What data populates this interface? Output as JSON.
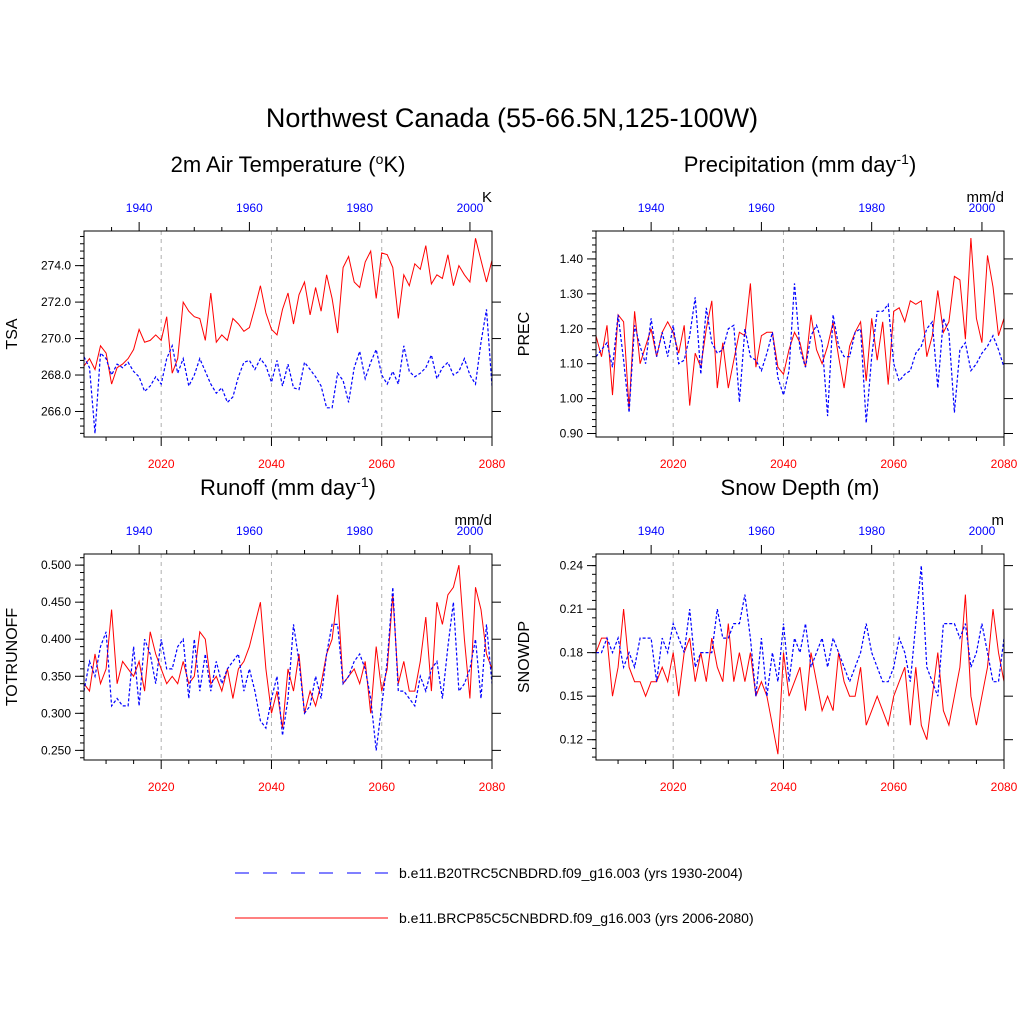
{
  "title": "Northwest Canada (55-66.5N,125-100W)",
  "legend": {
    "historical": "b.e11.B20TRC5CNBDRD.f09_g16.003 (yrs 1930-2004)",
    "future": "b.e11.BRCP85C5CNBDRD.f09_g16.003 (yrs 2006-2080)"
  },
  "colors": {
    "historical": "#0000ff",
    "future": "#ff0000"
  },
  "chart_data": [
    {
      "type": "line",
      "title_main": "2m Air Temperature (",
      "title_sup": "o",
      "title_end": "K)",
      "ylabel": "TSA",
      "unit": "K",
      "ylim": [
        264.6,
        275.9
      ],
      "yticks": [
        266.0,
        268.0,
        270.0,
        272.0,
        274.0
      ],
      "ytick_labels": [
        "266.0",
        "268.0",
        "270.0",
        "272.0",
        "274.0"
      ],
      "bottom_ticks": [
        "2020",
        "2040",
        "2060",
        "2080"
      ],
      "top_ticks": [
        "1940",
        "1960",
        "1980",
        "2000"
      ],
      "series": [
        {
          "name": "future",
          "x_start": 2006,
          "x_end": 2080,
          "values": [
            268.5,
            268.9,
            268.3,
            269.6,
            269.2,
            267.5,
            268.4,
            268.6,
            268.9,
            269.4,
            270.5,
            269.8,
            269.9,
            270.2,
            269.9,
            271.2,
            268.1,
            268.9,
            272.0,
            271.5,
            271.2,
            271.1,
            269.9,
            272.5,
            269.8,
            270.2,
            269.9,
            271.1,
            270.8,
            270.4,
            270.6,
            271.7,
            272.9,
            271.4,
            270.5,
            270.2,
            271.6,
            272.5,
            270.8,
            272.4,
            273.1,
            271.3,
            272.8,
            271.5,
            273.5,
            272.2,
            270.3,
            273.9,
            274.5,
            273.1,
            272.8,
            274.2,
            274.8,
            272.2,
            274.7,
            274.6,
            273.9,
            271.1,
            273.5,
            272.9,
            274.1,
            273.8,
            275.1,
            273.0,
            273.5,
            273.3,
            274.6,
            272.9,
            274.0,
            273.5,
            273.1,
            275.5,
            274.3,
            273.1,
            274.3
          ]
        },
        {
          "name": "historical",
          "x_start": 1930,
          "x_end": 2004,
          "values": [
            269.0,
            268.4,
            264.8,
            269.2,
            268.9,
            268.0,
            268.6,
            268.4,
            268.7,
            268.2,
            267.9,
            267.1,
            267.4,
            267.9,
            267.5,
            268.9,
            269.6,
            268.1,
            268.9,
            267.4,
            268.0,
            268.9,
            268.2,
            267.5,
            267.0,
            267.3,
            266.5,
            266.8,
            267.9,
            268.7,
            268.8,
            268.3,
            268.9,
            268.5,
            267.6,
            268.8,
            267.4,
            268.6,
            267.3,
            267.2,
            268.7,
            268.3,
            267.9,
            267.4,
            266.2,
            266.2,
            268.1,
            267.7,
            266.5,
            268.4,
            269.3,
            267.8,
            268.7,
            269.4,
            268.0,
            267.5,
            268.2,
            267.5,
            269.6,
            268.2,
            267.9,
            268.1,
            268.4,
            269.1,
            267.8,
            268.4,
            268.7,
            268.0,
            268.2,
            268.9,
            268.0,
            267.5,
            269.8,
            271.6,
            267.4
          ]
        }
      ]
    },
    {
      "type": "line",
      "title_main": "Precipitation (mm day",
      "title_sup": "-1",
      "title_end": ")",
      "ylabel": "PREC",
      "unit": "mm/d",
      "ylim": [
        0.89,
        1.48
      ],
      "yticks": [
        0.9,
        1.0,
        1.1,
        1.2,
        1.3,
        1.4
      ],
      "ytick_labels": [
        "0.90",
        "1.00",
        "1.10",
        "1.20",
        "1.30",
        "1.40"
      ],
      "bottom_ticks": [
        "2020",
        "2040",
        "2060",
        "2080"
      ],
      "top_ticks": [
        "1940",
        "1960",
        "1980",
        "2000"
      ],
      "series": [
        {
          "name": "future",
          "x_start": 2006,
          "x_end": 2080,
          "values": [
            1.18,
            1.12,
            1.21,
            1.01,
            1.24,
            1.22,
            0.97,
            1.25,
            1.1,
            1.15,
            1.2,
            1.12,
            1.19,
            1.22,
            1.19,
            1.13,
            1.21,
            0.98,
            1.13,
            1.09,
            1.2,
            1.28,
            1.03,
            1.16,
            1.03,
            1.11,
            1.19,
            1.18,
            1.33,
            1.09,
            1.18,
            1.19,
            1.19,
            1.09,
            1.07,
            1.14,
            1.19,
            1.16,
            1.09,
            1.24,
            1.14,
            1.1,
            1.15,
            1.22,
            1.12,
            1.03,
            1.15,
            1.19,
            1.22,
            1.05,
            1.23,
            1.11,
            1.22,
            1.04,
            1.25,
            1.26,
            1.22,
            1.28,
            1.27,
            1.28,
            1.12,
            1.18,
            1.31,
            1.19,
            1.22,
            1.35,
            1.34,
            1.17,
            1.46,
            1.23,
            1.16,
            1.41,
            1.32,
            1.18,
            1.23
          ]
        },
        {
          "name": "historical",
          "x_start": 1930,
          "x_end": 2004,
          "values": [
            1.12,
            1.14,
            1.16,
            1.09,
            1.24,
            1.11,
            0.96,
            1.21,
            1.15,
            1.1,
            1.23,
            1.12,
            1.19,
            1.12,
            1.21,
            1.1,
            1.11,
            1.18,
            1.29,
            1.07,
            1.26,
            1.16,
            1.13,
            1.14,
            1.2,
            1.21,
            0.99,
            1.2,
            1.12,
            1.11,
            1.08,
            1.13,
            1.19,
            1.06,
            1.01,
            1.08,
            1.33,
            1.14,
            1.09,
            1.18,
            1.21,
            1.16,
            0.95,
            1.24,
            1.15,
            1.12,
            1.12,
            1.19,
            1.2,
            0.93,
            1.12,
            1.25,
            1.25,
            1.27,
            1.1,
            1.05,
            1.07,
            1.08,
            1.13,
            1.15,
            1.2,
            1.22,
            1.03,
            1.23,
            1.19,
            0.96,
            1.14,
            1.16,
            1.08,
            1.1,
            1.13,
            1.15,
            1.18,
            1.14,
            1.09
          ]
        }
      ]
    },
    {
      "type": "line",
      "title_main": "Runoff (mm day",
      "title_sup": "-1",
      "title_end": ")",
      "ylabel": "TOTRUNOFF",
      "unit": "mm/d",
      "ylim": [
        0.237,
        0.515
      ],
      "yticks": [
        0.25,
        0.3,
        0.35,
        0.4,
        0.45,
        0.5
      ],
      "ytick_labels": [
        "0.250",
        "0.300",
        "0.350",
        "0.400",
        "0.450",
        "0.500"
      ],
      "bottom_ticks": [
        "2020",
        "2040",
        "2060",
        "2080"
      ],
      "top_ticks": [
        "1940",
        "1960",
        "1980",
        "2000"
      ],
      "series": [
        {
          "name": "future",
          "x_start": 2006,
          "x_end": 2080,
          "values": [
            0.34,
            0.33,
            0.38,
            0.34,
            0.36,
            0.44,
            0.34,
            0.37,
            0.36,
            0.35,
            0.37,
            0.33,
            0.41,
            0.38,
            0.36,
            0.34,
            0.35,
            0.34,
            0.37,
            0.34,
            0.35,
            0.41,
            0.4,
            0.34,
            0.35,
            0.33,
            0.36,
            0.32,
            0.36,
            0.37,
            0.39,
            0.42,
            0.45,
            0.36,
            0.3,
            0.33,
            0.28,
            0.36,
            0.33,
            0.38,
            0.3,
            0.33,
            0.31,
            0.34,
            0.38,
            0.4,
            0.46,
            0.34,
            0.35,
            0.36,
            0.34,
            0.37,
            0.3,
            0.39,
            0.33,
            0.36,
            0.46,
            0.34,
            0.37,
            0.33,
            0.33,
            0.37,
            0.43,
            0.33,
            0.45,
            0.42,
            0.46,
            0.47,
            0.5,
            0.4,
            0.32,
            0.47,
            0.44,
            0.38,
            0.36
          ]
        },
        {
          "name": "historical",
          "x_start": 1930,
          "x_end": 2004,
          "values": [
            0.33,
            0.37,
            0.35,
            0.39,
            0.41,
            0.31,
            0.32,
            0.31,
            0.31,
            0.39,
            0.31,
            0.4,
            0.38,
            0.34,
            0.4,
            0.36,
            0.36,
            0.39,
            0.4,
            0.32,
            0.4,
            0.33,
            0.38,
            0.33,
            0.37,
            0.34,
            0.36,
            0.37,
            0.38,
            0.33,
            0.36,
            0.33,
            0.29,
            0.28,
            0.32,
            0.35,
            0.27,
            0.32,
            0.42,
            0.37,
            0.3,
            0.31,
            0.35,
            0.32,
            0.38,
            0.42,
            0.42,
            0.34,
            0.35,
            0.37,
            0.38,
            0.36,
            0.32,
            0.25,
            0.31,
            0.37,
            0.47,
            0.33,
            0.33,
            0.32,
            0.31,
            0.35,
            0.33,
            0.36,
            0.37,
            0.32,
            0.39,
            0.45,
            0.33,
            0.34,
            0.36,
            0.4,
            0.32,
            0.42,
            0.34
          ]
        }
      ]
    },
    {
      "type": "line",
      "title_main": "Snow Depth (m)",
      "title_sup": "",
      "title_end": "",
      "ylabel": "SNOWDP",
      "unit": "m",
      "ylim": [
        0.106,
        0.248
      ],
      "yticks": [
        0.12,
        0.15,
        0.18,
        0.21,
        0.24
      ],
      "ytick_labels": [
        "0.12",
        "0.15",
        "0.18",
        "0.21",
        "0.24"
      ],
      "bottom_ticks": [
        "2020",
        "2040",
        "2060",
        "2080"
      ],
      "top_ticks": [
        "1940",
        "1960",
        "1980",
        "2000"
      ],
      "series": [
        {
          "name": "future",
          "x_start": 2006,
          "x_end": 2080,
          "values": [
            0.18,
            0.19,
            0.19,
            0.15,
            0.17,
            0.21,
            0.17,
            0.16,
            0.16,
            0.15,
            0.16,
            0.16,
            0.17,
            0.16,
            0.18,
            0.15,
            0.18,
            0.19,
            0.16,
            0.18,
            0.16,
            0.19,
            0.17,
            0.16,
            0.2,
            0.16,
            0.18,
            0.16,
            0.18,
            0.15,
            0.16,
            0.15,
            0.13,
            0.11,
            0.18,
            0.15,
            0.16,
            0.17,
            0.14,
            0.18,
            0.16,
            0.14,
            0.15,
            0.14,
            0.18,
            0.16,
            0.15,
            0.15,
            0.17,
            0.13,
            0.14,
            0.15,
            0.14,
            0.13,
            0.15,
            0.16,
            0.17,
            0.13,
            0.17,
            0.13,
            0.12,
            0.15,
            0.18,
            0.14,
            0.13,
            0.15,
            0.17,
            0.22,
            0.15,
            0.13,
            0.15,
            0.17,
            0.21,
            0.18,
            0.16
          ]
        },
        {
          "name": "historical",
          "x_start": 1930,
          "x_end": 2004,
          "values": [
            0.18,
            0.18,
            0.19,
            0.18,
            0.19,
            0.17,
            0.18,
            0.17,
            0.19,
            0.19,
            0.19,
            0.16,
            0.19,
            0.18,
            0.2,
            0.19,
            0.18,
            0.21,
            0.17,
            0.18,
            0.18,
            0.18,
            0.21,
            0.19,
            0.19,
            0.2,
            0.2,
            0.22,
            0.19,
            0.15,
            0.19,
            0.15,
            0.18,
            0.16,
            0.2,
            0.16,
            0.19,
            0.18,
            0.2,
            0.17,
            0.18,
            0.19,
            0.17,
            0.19,
            0.18,
            0.17,
            0.16,
            0.17,
            0.18,
            0.2,
            0.18,
            0.17,
            0.16,
            0.16,
            0.17,
            0.19,
            0.18,
            0.16,
            0.2,
            0.24,
            0.17,
            0.16,
            0.15,
            0.2,
            0.2,
            0.2,
            0.19,
            0.2,
            0.17,
            0.18,
            0.2,
            0.18,
            0.16,
            0.16,
            0.19
          ]
        }
      ]
    }
  ]
}
